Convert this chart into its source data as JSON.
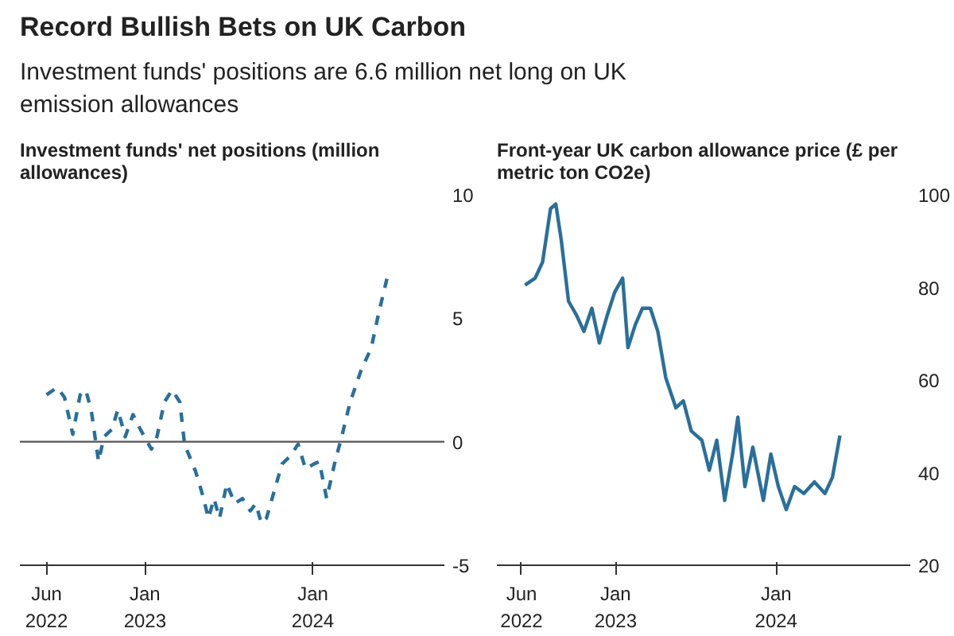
{
  "chart_data": [
    {
      "type": "line",
      "title": "Record Bullish Bets on UK Carbon",
      "subtitle": "Investment funds' positions are 6.6 million net long on UK emission allowances",
      "ylabel": "Investment funds' net positions (million allowances)",
      "line_style": "dashed",
      "grid": false,
      "x": [
        "2022-06-01",
        "2022-06-24",
        "2022-07-10",
        "2022-07-28",
        "2022-08-13",
        "2022-08-25",
        "2022-09-06",
        "2022-09-22",
        "2022-10-04",
        "2022-10-21",
        "2022-11-03",
        "2022-11-19",
        "2022-12-06",
        "2022-12-22",
        "2023-01-15",
        "2023-01-27",
        "2023-02-12",
        "2023-03-01",
        "2023-03-18",
        "2023-03-28",
        "2023-04-21",
        "2023-05-07",
        "2023-05-19",
        "2023-05-31",
        "2023-06-12",
        "2023-06-28",
        "2023-07-15",
        "2023-08-01",
        "2023-08-18",
        "2023-08-30",
        "2023-09-11",
        "2023-09-22",
        "2023-10-09",
        "2023-10-26",
        "2023-11-12",
        "2023-11-30",
        "2023-12-16",
        "2024-01-03",
        "2024-01-15",
        "2024-01-31",
        "2024-02-17",
        "2024-03-05",
        "2024-03-22",
        "2024-04-15",
        "2024-05-07",
        "2024-05-23",
        "2024-06-10"
      ],
      "series": [
        {
          "color": "#2a6f9b",
          "values": [
            1.9,
            2.2,
            1.8,
            0.3,
            1.9,
            2.1,
            1.3,
            -0.8,
            0.2,
            0.5,
            1.3,
            0.2,
            1.1,
            0.5,
            -0.3,
            0.2,
            1.6,
            2.1,
            1.6,
            -0.1,
            -1.2,
            -2.2,
            -3.1,
            -2.3,
            -3.1,
            -1.7,
            -2.5,
            -2.3,
            -2.8,
            -2.5,
            -3.3,
            -3.1,
            -2.0,
            -0.9,
            -0.6,
            -0.1,
            -1.1,
            -0.9,
            -0.8,
            -2.3,
            -0.9,
            0.3,
            1.6,
            2.9,
            3.8,
            5.2,
            6.6
          ]
        }
      ],
      "xlim": [
        "2022-04-04",
        "2024-10-13"
      ],
      "xticks": [
        {
          "value": "2022-06-01",
          "label": "Jun 2022"
        },
        {
          "value": "2023-01-01",
          "label": "Jan 2023"
        },
        {
          "value": "2024-01-01",
          "label": "Jan 2024"
        }
      ],
      "ylim": [
        -5,
        10
      ],
      "yticks": [
        -5,
        0,
        5,
        10
      ],
      "ref_lines": [
        {
          "axis": "y",
          "value": 0,
          "color": "#555555"
        }
      ]
    },
    {
      "type": "line",
      "ylabel": "Front-year UK carbon allowance price (£ per metric ton CO2e)",
      "line_style": "solid",
      "grid": false,
      "x": [
        "2022-06-09",
        "2022-07-02",
        "2022-07-19",
        "2022-08-06",
        "2022-08-18",
        "2022-08-30",
        "2022-09-16",
        "2022-10-04",
        "2022-10-21",
        "2022-11-08",
        "2022-11-25",
        "2022-12-13",
        "2022-12-30",
        "2023-01-17",
        "2023-01-29",
        "2023-02-15",
        "2023-03-03",
        "2023-03-21",
        "2023-04-07",
        "2023-04-25",
        "2023-05-18",
        "2023-06-04",
        "2023-06-22",
        "2023-07-16",
        "2023-08-02",
        "2023-08-19",
        "2023-09-06",
        "2023-09-24",
        "2023-10-06",
        "2023-10-22",
        "2023-11-09",
        "2023-12-03",
        "2023-12-20",
        "2024-01-06",
        "2024-01-24",
        "2024-02-12",
        "2024-03-04",
        "2024-03-28",
        "2024-04-21",
        "2024-05-08",
        "2024-05-25"
      ],
      "series": [
        {
          "color": "#2a6f9b",
          "values": [
            80.5,
            82,
            85.5,
            97,
            98,
            90.5,
            77,
            74,
            70.5,
            75.5,
            68,
            74,
            79,
            82,
            67,
            72,
            75.5,
            75.5,
            70.5,
            60.5,
            54,
            55.5,
            49,
            47,
            40.5,
            47,
            34,
            44,
            52,
            37,
            45.5,
            34,
            44,
            37,
            32,
            37,
            35.5,
            38,
            35.5,
            39,
            48
          ]
        }
      ],
      "xlim": [
        "2022-04-06",
        "2024-11-01"
      ],
      "xticks": [
        {
          "value": "2022-06-01",
          "label": "Jun 2022"
        },
        {
          "value": "2023-01-01",
          "label": "Jan 2023"
        },
        {
          "value": "2024-01-01",
          "label": "Jan 2024"
        }
      ],
      "ylim": [
        20,
        100
      ],
      "yticks": [
        20,
        40,
        60,
        80,
        100
      ]
    }
  ]
}
